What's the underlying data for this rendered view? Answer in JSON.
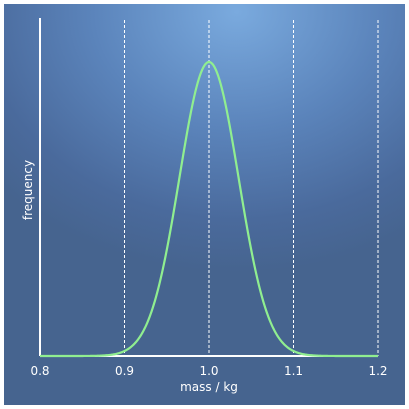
{
  "chart_data": {
    "type": "line",
    "xlabel": "mass / kg",
    "ylabel": "frequency",
    "xlim": [
      0.8,
      1.2
    ],
    "x_ticks": [
      "0.8",
      "0.9",
      "1.0",
      "1.1",
      "1.2"
    ],
    "grid": "vertical dashed at x ticks",
    "series": [
      {
        "color": "#90ee90",
        "distribution": "normal",
        "mean": 1.0,
        "std": 0.035,
        "x": [
          0.8,
          0.84,
          0.88,
          0.9,
          0.92,
          0.94,
          0.96,
          0.98,
          1.0,
          1.02,
          1.04,
          1.06,
          1.08,
          1.1,
          1.12,
          1.16,
          1.2
        ],
        "y": [
          0.0,
          0.0,
          0.003,
          0.017,
          0.074,
          0.23,
          0.52,
          0.85,
          1.0,
          0.85,
          0.52,
          0.23,
          0.074,
          0.017,
          0.003,
          0.0,
          0.0
        ]
      }
    ]
  }
}
